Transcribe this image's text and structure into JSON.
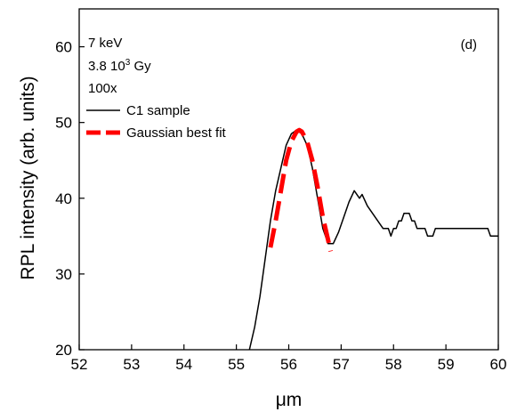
{
  "chart_data": {
    "type": "line",
    "panel_label": "(d)",
    "xlabel": "μm",
    "ylabel": "RPL intensity (arb. units)",
    "xlim": [
      52,
      60
    ],
    "ylim": [
      20,
      65
    ],
    "x_ticks": [
      52,
      53,
      54,
      55,
      56,
      57,
      58,
      59,
      60
    ],
    "y_ticks": [
      20,
      30,
      40,
      50,
      60
    ],
    "annotations": {
      "energy": "7 keV",
      "dose_base": "3.8 10",
      "dose_exp": "3",
      "dose_unit": "Gy",
      "magnification": "100x"
    },
    "legend_position": "top-left",
    "series": [
      {
        "name": "C1 sample",
        "color": "#000000",
        "style": "solid",
        "x": [
          55.25,
          55.35,
          55.45,
          55.55,
          55.65,
          55.75,
          55.85,
          55.95,
          56.05,
          56.15,
          56.25,
          56.35,
          56.45,
          56.55,
          56.65,
          56.75,
          56.85,
          56.95,
          57.05,
          57.15,
          57.25,
          57.35,
          57.4,
          57.5,
          57.6,
          57.7,
          57.8,
          57.9,
          57.95,
          58.0,
          58.05,
          58.1,
          58.15,
          58.2,
          58.25,
          58.3,
          58.35,
          58.4,
          58.45,
          58.5,
          58.55,
          58.6,
          58.65,
          58.7,
          58.75,
          58.8,
          58.9,
          59.0,
          59.2,
          59.4,
          59.6,
          59.8,
          59.85,
          59.9,
          60.0
        ],
        "y": [
          20,
          23,
          27,
          32,
          37,
          41,
          44,
          47,
          48.5,
          49,
          48.5,
          47,
          44,
          40,
          36,
          34,
          34,
          35.5,
          37.5,
          39.5,
          41,
          40,
          40.5,
          39,
          38,
          37,
          36,
          36,
          35,
          36,
          36,
          37,
          37,
          38,
          38,
          38,
          37,
          37,
          36,
          36,
          36,
          36,
          35,
          35,
          35,
          36,
          36,
          36,
          36,
          36,
          36,
          36,
          35,
          35,
          35
        ]
      },
      {
        "name": "Gaussian best fit",
        "color": "#ff0000",
        "style": "dashed",
        "x": [
          55.65,
          55.75,
          55.85,
          55.95,
          56.05,
          56.15,
          56.2,
          56.25,
          56.35,
          56.45,
          56.55,
          56.65,
          56.75,
          56.8
        ],
        "y": [
          33.5,
          37,
          41,
          45,
          47.5,
          48.8,
          49,
          48.8,
          47.5,
          45,
          41.5,
          37.5,
          34.5,
          33
        ]
      }
    ]
  }
}
